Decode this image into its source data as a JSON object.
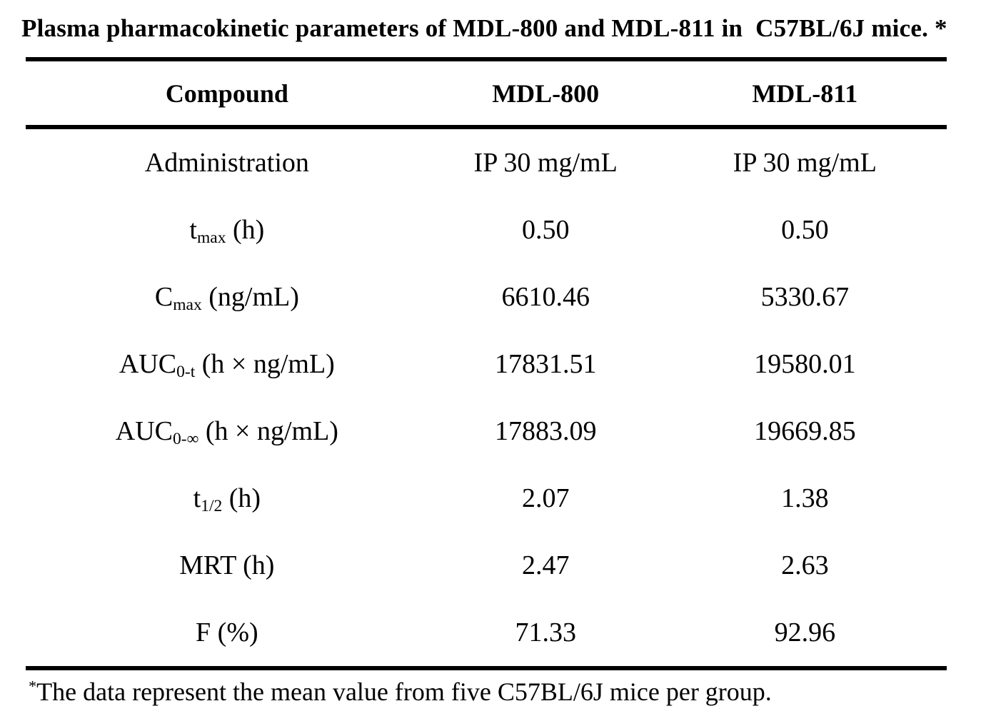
{
  "title": "Plasma pharmacokinetic parameters of MDL-800 and MDL-811 in  C57BL/6J mice. *",
  "table": {
    "header": {
      "col1": "Compound",
      "col2": "MDL-800",
      "col3": "MDL-811"
    },
    "rows": [
      {
        "label_pre": "Administration",
        "label_sub": "",
        "label_post": "",
        "mdl800": "IP 30 mg/mL",
        "mdl811": "IP 30 mg/mL"
      },
      {
        "label_pre": "t",
        "label_sub": "max",
        "label_post": " (h)",
        "mdl800": "0.50",
        "mdl811": "0.50"
      },
      {
        "label_pre": "C",
        "label_sub": "max",
        "label_post": " (ng/mL)",
        "mdl800": "6610.46",
        "mdl811": "5330.67"
      },
      {
        "label_pre": "AUC",
        "label_sub": "0-t",
        "label_post": " (h × ng/mL)",
        "mdl800": "17831.51",
        "mdl811": "19580.01"
      },
      {
        "label_pre": "AUC",
        "label_sub": "0-∞",
        "label_post": " (h × ng/mL)",
        "mdl800": "17883.09",
        "mdl811": "19669.85"
      },
      {
        "label_pre": "t",
        "label_sub": "1/2",
        "label_post": " (h)",
        "mdl800": "2.07",
        "mdl811": "1.38"
      },
      {
        "label_pre": "MRT (h)",
        "label_sub": "",
        "label_post": "",
        "mdl800": "2.47",
        "mdl811": "2.63"
      },
      {
        "label_pre": "F (%)",
        "label_sub": "",
        "label_post": "",
        "mdl800": "71.33",
        "mdl811": "92.96"
      }
    ]
  },
  "footnote": {
    "marker": "*",
    "text": "The data represent the mean value from five C57BL/6J mice per group."
  }
}
